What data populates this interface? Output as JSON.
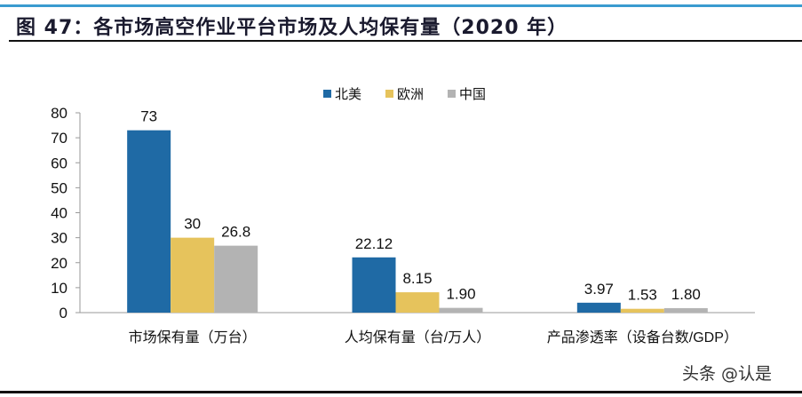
{
  "title": "图 47：各市场高空作业平台市场及人均保有量（2020 年）",
  "watermark": "头条 @认是",
  "chart_data": {
    "type": "bar",
    "categories": [
      "市场保有量（万台）",
      "人均保有量（台/万人）",
      "产品渗透率（设备台数/GDP）"
    ],
    "series": [
      {
        "name": "北美",
        "color": "#1f6aa5",
        "values": [
          73,
          22.12,
          3.97
        ],
        "labels": [
          "73",
          "22.12",
          "3.97"
        ]
      },
      {
        "name": "欧洲",
        "color": "#e6c35c",
        "values": [
          30,
          8.15,
          1.53
        ],
        "labels": [
          "30",
          "8.15",
          "1.53"
        ]
      },
      {
        "name": "中国",
        "color": "#b3b3b3",
        "values": [
          26.8,
          1.9,
          1.8
        ],
        "labels": [
          "26.8",
          "1.90",
          "1.80"
        ]
      }
    ],
    "ylim": [
      0,
      80
    ],
    "yticks": [
      "0",
      "10",
      "20",
      "30",
      "40",
      "50",
      "60",
      "70",
      "80"
    ],
    "legend": "top",
    "grid": false
  }
}
